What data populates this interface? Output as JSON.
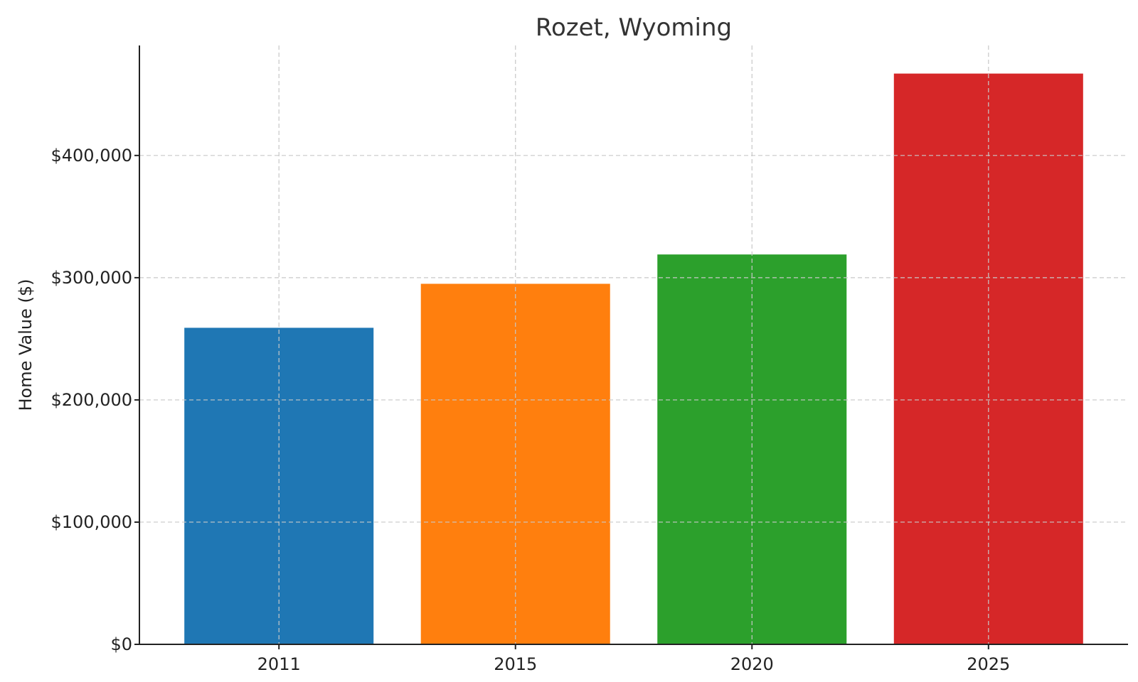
{
  "chart_data": {
    "type": "bar",
    "title": "Rozet, Wyoming",
    "xlabel": "",
    "ylabel": "Home Value ($)",
    "categories": [
      "2011",
      "2015",
      "2020",
      "2025"
    ],
    "values": [
      259000,
      295000,
      319000,
      467000
    ],
    "colors": [
      "#1f77b4",
      "#ff7f0e",
      "#2ca02c",
      "#d62728"
    ],
    "ylim": [
      0,
      490000
    ],
    "y_ticks": [
      0,
      100000,
      200000,
      300000,
      400000
    ],
    "y_tick_labels": [
      "$0",
      "$100,000",
      "$200,000",
      "$300,000",
      "$400,000"
    ],
    "grid": true
  }
}
